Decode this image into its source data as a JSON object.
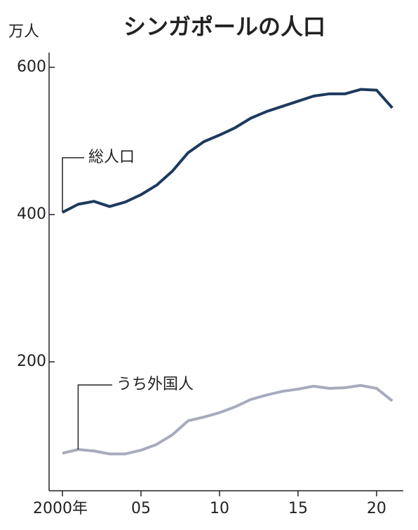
{
  "chart_data": {
    "type": "line",
    "title": "シンガポールの人口",
    "y_label": "万人",
    "x": [
      2000,
      2001,
      2002,
      2003,
      2004,
      2005,
      2006,
      2007,
      2008,
      2009,
      2010,
      2011,
      2012,
      2013,
      2014,
      2015,
      2016,
      2017,
      2018,
      2019,
      2020,
      2021
    ],
    "series": [
      {
        "name": "総人口",
        "color": "#1d3a5e",
        "values": [
          403,
          414,
          418,
          411,
          417,
          427,
          440,
          459,
          484,
          499,
          508,
          518,
          531,
          540,
          547,
          554,
          561,
          564,
          564,
          570,
          569,
          545
        ]
      },
      {
        "name": "うち外国人",
        "color": "#a7abbd",
        "values": [
          76,
          81,
          79,
          75,
          75,
          80,
          88,
          101,
          120,
          125,
          131,
          139,
          149,
          155,
          160,
          163,
          167,
          164,
          165,
          168,
          164,
          147
        ]
      }
    ],
    "xlim": [
      1999.15,
      2021.7
    ],
    "ylim": [
      25,
      620
    ],
    "xticks": [
      {
        "value": 2000,
        "label": "2000年"
      },
      {
        "value": 2005,
        "label": "05"
      },
      {
        "value": 2010,
        "label": "10"
      },
      {
        "value": 2015,
        "label": "15"
      },
      {
        "value": 2020,
        "label": "20"
      }
    ],
    "yticks": [
      200,
      400,
      600
    ]
  }
}
